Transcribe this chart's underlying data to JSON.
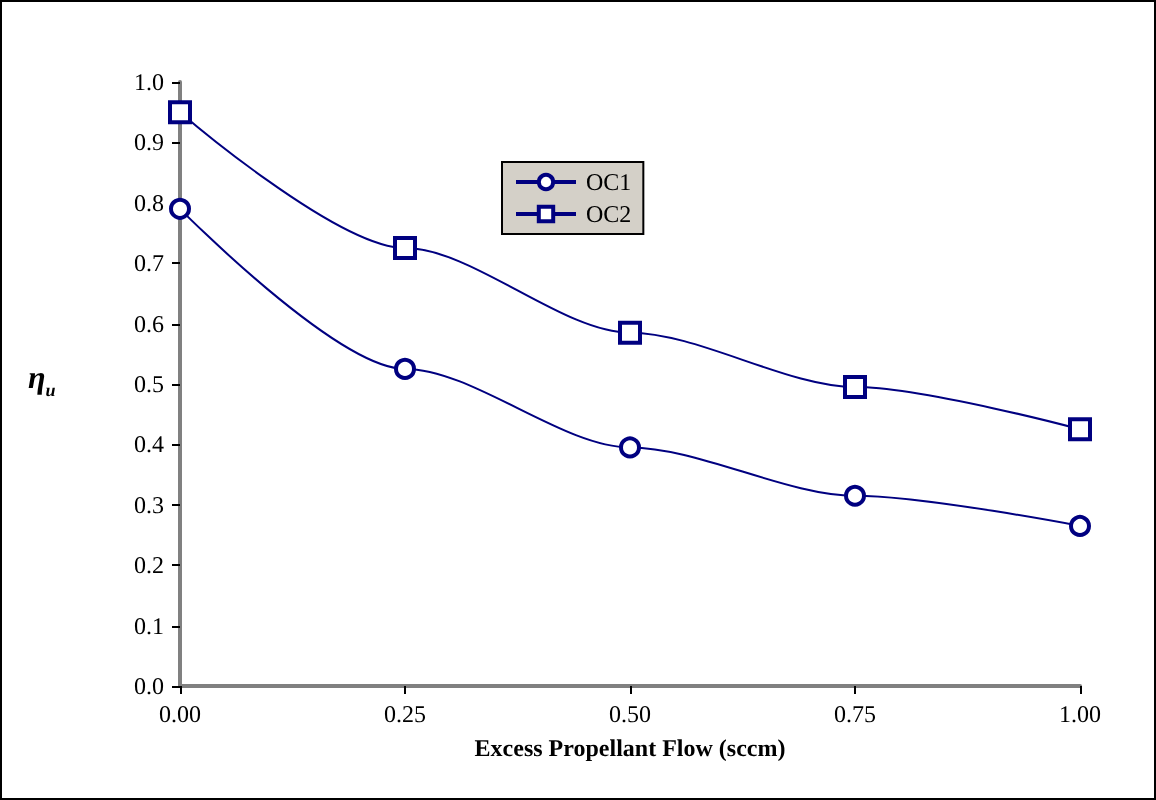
{
  "chart_data": {
    "type": "line",
    "xlabel": "Excess Propellant Flow (sccm)",
    "ylabel": "η$_{u}$",
    "x": [
      0,
      0.25,
      0.5,
      0.75,
      1
    ],
    "series": [
      {
        "name": "OC1",
        "color": "#000080",
        "marker": "circle",
        "values": [
          0.79,
          0.525,
          0.395,
          0.315,
          0.265
        ]
      },
      {
        "name": "OC2",
        "color": "#000080",
        "marker": "square",
        "values": [
          0.95,
          0.725,
          0.585,
          0.495,
          0.425
        ]
      }
    ],
    "xlim": [
      0,
      1
    ],
    "xticks": [
      {
        "value": 0,
        "label": "0.00"
      },
      {
        "value": 0.25,
        "label": "0.25"
      },
      {
        "value": 0.5,
        "label": "0.50"
      },
      {
        "value": 0.75,
        "label": "0.75"
      },
      {
        "value": 1,
        "label": "1.00"
      }
    ],
    "ylim": [
      0,
      1
    ],
    "yticks": [
      {
        "value": 0,
        "label": "0.0"
      },
      {
        "value": 0.1,
        "label": "0.1"
      },
      {
        "value": 0.2,
        "label": "0.2"
      },
      {
        "value": 0.3,
        "label": "0.3"
      },
      {
        "value": 0.4,
        "label": "0.4"
      },
      {
        "value": 0.5,
        "label": "0.5"
      },
      {
        "value": 0.6,
        "label": "0.6"
      },
      {
        "value": 0.7,
        "label": "0.7"
      },
      {
        "value": 0.8,
        "label": "0.8"
      },
      {
        "value": 0.9,
        "label": "0.9"
      },
      {
        "value": 1,
        "label": "1.0"
      }
    ],
    "grid": false,
    "legend": "top",
    "line_style": "solid"
  }
}
